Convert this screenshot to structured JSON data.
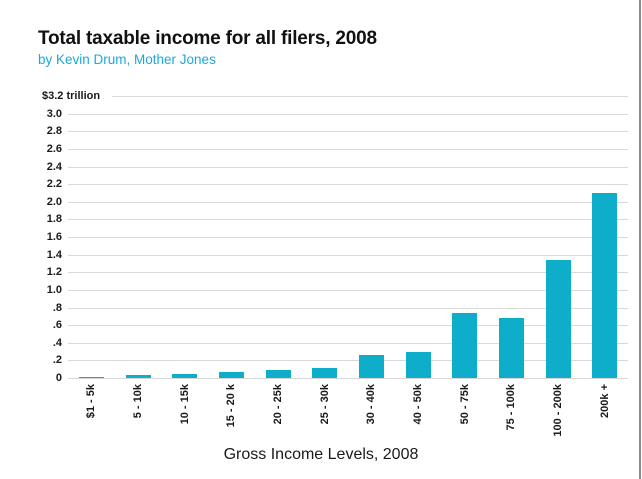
{
  "header": {
    "title": "Total taxable income for all filers, 2008",
    "byline": "by Kevin Drum, Mother Jones"
  },
  "chart_data": {
    "type": "bar",
    "title": "Total taxable income for all filers, 2008",
    "subtitle": "by Kevin Drum, Mother Jones",
    "categories": [
      "$1 - 5k",
      "5 - 10k",
      "10 - 15k",
      "15 - 20 k",
      "20 - 25k",
      "25 - 30k",
      "30 - 40k",
      "40 - 50k",
      "50 - 75k",
      "75 - 100k",
      "100 - 200k",
      "200k +"
    ],
    "values": [
      0.01,
      0.03,
      0.05,
      0.07,
      0.09,
      0.11,
      0.26,
      0.29,
      0.74,
      0.68,
      1.34,
      2.1
    ],
    "unit": "trillion dollars",
    "xlabel": "Gross Income Levels, 2008",
    "ylim": [
      0,
      3.2
    ],
    "grid": true,
    "legend": "none",
    "y_ticks": [
      {
        "label": "$3.2 trillion",
        "value": 3.2
      },
      {
        "label": "3.0",
        "value": 3.0
      },
      {
        "label": "2.8",
        "value": 2.8
      },
      {
        "label": "2.6",
        "value": 2.6
      },
      {
        "label": "2.4",
        "value": 2.4
      },
      {
        "label": "2.2",
        "value": 2.2
      },
      {
        "label": "2.0",
        "value": 2.0
      },
      {
        "label": "1.8",
        "value": 1.8
      },
      {
        "label": "1.6",
        "value": 1.6
      },
      {
        "label": "1.4",
        "value": 1.4
      },
      {
        "label": "1.2",
        "value": 1.2
      },
      {
        "label": "1.0",
        "value": 1.0
      },
      {
        "label": ".8",
        "value": 0.8
      },
      {
        "label": ".6",
        "value": 0.6
      },
      {
        "label": ".4",
        "value": 0.4
      },
      {
        "label": ".2",
        "value": 0.2
      },
      {
        "label": "0",
        "value": 0
      }
    ]
  },
  "colors": {
    "bar": "#0eaecb",
    "gridline": "#d8d8d8",
    "subtitle": "#1ca9dc",
    "text": "#1a1a1a",
    "right_border": "#8c8c8c"
  }
}
